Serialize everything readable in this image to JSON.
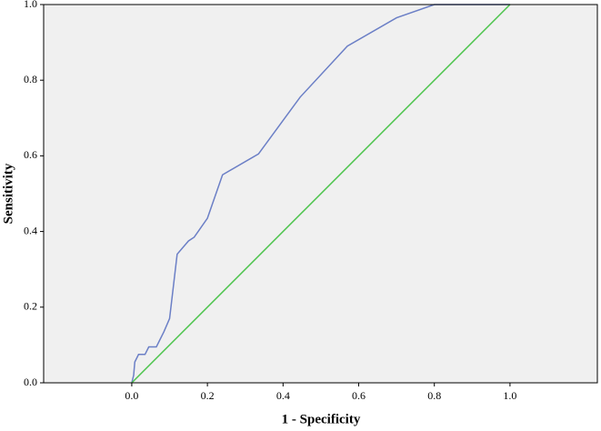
{
  "chart_data": {
    "type": "line",
    "x_label": "1 - Specificity",
    "y_label": "Sensitivity",
    "xlim": [
      -0.233,
      1.231
    ],
    "ylim": [
      0,
      1
    ],
    "xticks": [
      {
        "value": 0,
        "label": "0.0"
      },
      {
        "value": 0.2,
        "label": "0.2"
      },
      {
        "value": 0.4,
        "label": "0.4"
      },
      {
        "value": 0.6,
        "label": "0.6"
      },
      {
        "value": 0.8,
        "label": "0.8"
      },
      {
        "value": 1,
        "label": "1.0"
      }
    ],
    "yticks": [
      {
        "value": 0,
        "label": "0.0"
      },
      {
        "value": 0.2,
        "label": "0.2"
      },
      {
        "value": 0.4,
        "label": "0.4"
      },
      {
        "value": 0.6,
        "label": "0.6"
      },
      {
        "value": 0.8,
        "label": "0.8"
      },
      {
        "value": 1,
        "label": "1.0"
      }
    ],
    "background": "#f0f0f0",
    "series": [
      {
        "color": "#6b7fc6",
        "x": [
          0,
          0.005,
          0.008,
          0.018,
          0.035,
          0.045,
          0.065,
          0.085,
          0.1,
          0.12,
          0.15,
          0.165,
          0.2,
          0.24,
          0.335,
          0.445,
          0.57,
          0.7,
          0.8,
          1.0
        ],
        "values": [
          0,
          0.02,
          0.055,
          0.075,
          0.075,
          0.095,
          0.095,
          0.135,
          0.17,
          0.34,
          0.375,
          0.385,
          0.435,
          0.55,
          0.605,
          0.755,
          0.89,
          0.965,
          1.0,
          1.0
        ]
      },
      {
        "color": "#4cc44c",
        "x": [
          0,
          1
        ],
        "values": [
          0,
          1
        ]
      }
    ]
  }
}
